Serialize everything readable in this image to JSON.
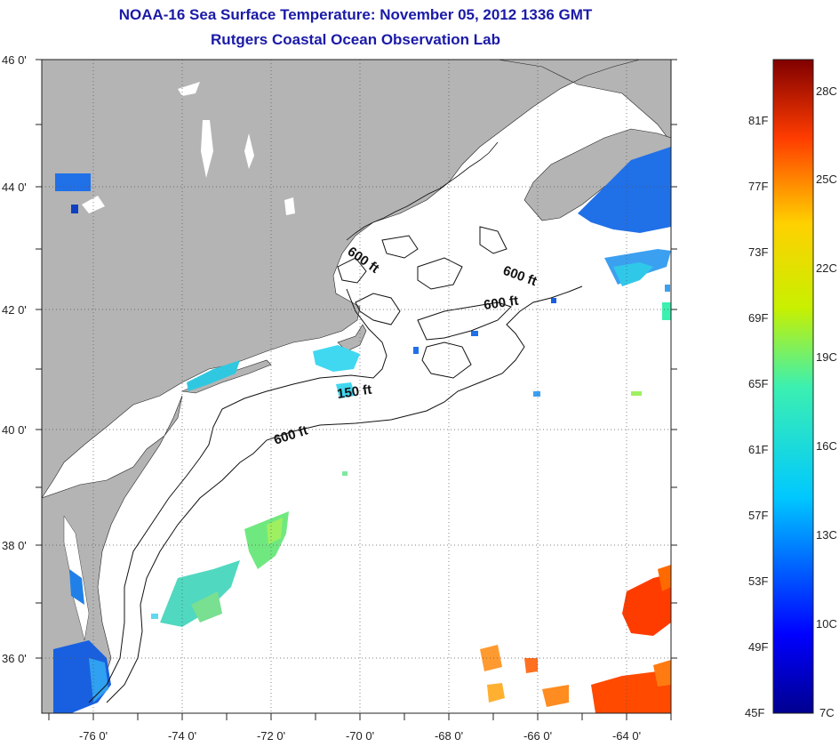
{
  "title": {
    "line1": "NOAA-16 Sea Surface Temperature:  November 05, 2012 1336 GMT",
    "line2": "Rutgers Coastal Ocean Observation Lab"
  },
  "lat_labels": [
    "46 0'",
    "44 0'",
    "42 0'",
    "40 0'",
    "38 0'",
    "36 0'"
  ],
  "lon_labels": [
    "-76 0'",
    "-74 0'",
    "-72 0'",
    "-70 0'",
    "-68 0'",
    "-66 0'",
    "-64 0'"
  ],
  "contour_labels": [
    "600 ft",
    "600 ft",
    "600 ft",
    "150 ft",
    "600 ft"
  ],
  "colorbar": {
    "fahrenheit": [
      "81F",
      "77F",
      "73F",
      "69F",
      "65F",
      "61F",
      "57F",
      "53F",
      "49F",
      "45F"
    ],
    "celsius": [
      "28C",
      "25C",
      "22C",
      "19C",
      "16C",
      "13C",
      "10C",
      "7C"
    ]
  },
  "colors": {
    "land": "#b4b4b4",
    "ocean_nodata": "#ffffff",
    "title": "#1a1aa8",
    "grid": "#555555"
  }
}
